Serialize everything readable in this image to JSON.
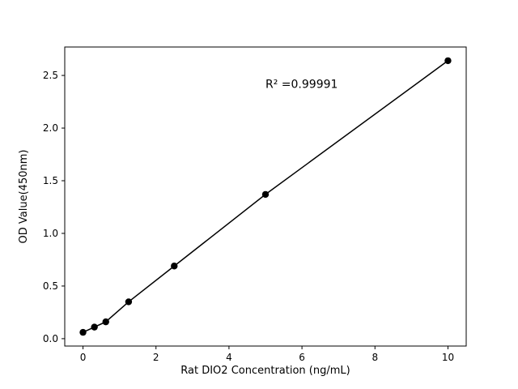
{
  "chart_data": {
    "type": "scatter",
    "title": "",
    "xlabel": "Rat DIO2 Concentration (ng/mL)",
    "ylabel": "OD Value(450nm)",
    "annotation": {
      "text": "R² =0.99991",
      "x": 5.0,
      "y": 2.38
    },
    "x": [
      0,
      0.3125,
      0.625,
      1.25,
      2.5,
      5,
      10
    ],
    "y": [
      0.06,
      0.11,
      0.16,
      0.35,
      0.69,
      1.37,
      2.64
    ],
    "line_through_points": true,
    "xticks": [
      0,
      2,
      4,
      6,
      8,
      10
    ],
    "xtick_labels": [
      "0",
      "2",
      "4",
      "6",
      "8",
      "10"
    ],
    "yticks": [
      0.0,
      0.5,
      1.0,
      1.5,
      2.0,
      2.5
    ],
    "ytick_labels": [
      "0.0",
      "0.5",
      "1.0",
      "1.5",
      "2.0",
      "2.5"
    ],
    "xlim": [
      -0.5,
      10.5
    ],
    "ylim": [
      -0.07,
      2.77
    ],
    "grid": false,
    "legend": "none",
    "marker_color": "#000000",
    "line_color": "#000000",
    "axis_color": "#000000",
    "background_color": "#ffffff"
  }
}
